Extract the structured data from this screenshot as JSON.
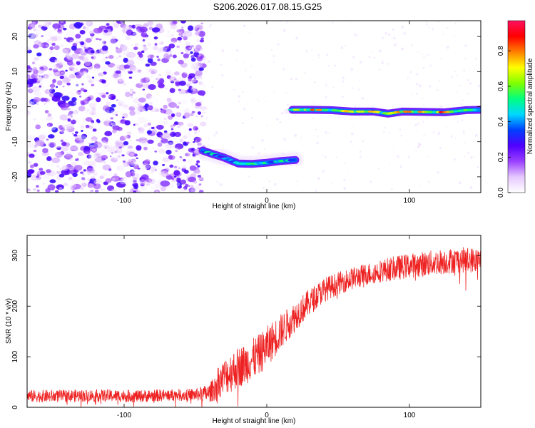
{
  "title": "S206.2026.017.08.15.G25",
  "chart_data": [
    {
      "type": "heatmap",
      "name": "spectrogram",
      "xlabel": "Height of straight line (km)",
      "ylabel": "Frequency (Hz)",
      "xlim": [
        -168,
        150
      ],
      "ylim": [
        -24.5,
        24.5
      ],
      "xticks": [
        -100,
        0,
        100
      ],
      "yticks": [
        -20,
        -10,
        0,
        10,
        20
      ],
      "colorbar": {
        "label": "Normalized spectral amplitude",
        "range": [
          0,
          0.97
        ],
        "ticks": [
          0.0,
          0.2,
          0.4,
          0.6,
          0.8
        ],
        "colormap": [
          "#ffffff",
          "#e6c8ff",
          "#9a40ff",
          "#5000ff",
          "#0040ff",
          "#00d8ff",
          "#00ff80",
          "#80ff00",
          "#ffff00",
          "#ff8000",
          "#ff0000",
          "#ff1060"
        ]
      },
      "noise_region": {
        "x_range": [
          -168,
          -50
        ],
        "description_amplitude": 0.15
      },
      "tracks": [
        {
          "segment": "lower",
          "points": [
            [
              -45,
              -12.5
            ],
            [
              -38,
              -13.5
            ],
            [
              -30,
              -14.5
            ],
            [
              -20,
              -16.2
            ],
            [
              -10,
              -16.3
            ],
            [
              0,
              -16.0
            ],
            [
              10,
              -15.5
            ],
            [
              20,
              -15.2
            ]
          ],
          "amplitude": [
            0.45,
            0.5,
            0.4,
            0.55,
            0.6,
            0.55,
            0.5,
            0.5
          ]
        },
        {
          "segment": "upper",
          "points": [
            [
              18,
              -0.9
            ],
            [
              30,
              -0.9
            ],
            [
              45,
              -1.0
            ],
            [
              60,
              -1.4
            ],
            [
              75,
              -1.4
            ],
            [
              85,
              -2.0
            ],
            [
              95,
              -1.4
            ],
            [
              110,
              -1.5
            ],
            [
              125,
              -1.6
            ],
            [
              140,
              -1.0
            ],
            [
              150,
              -0.9
            ]
          ],
          "amplitude": [
            0.7,
            0.85,
            0.6,
            0.75,
            0.85,
            0.6,
            0.8,
            0.7,
            0.85,
            0.6,
            0.5
          ]
        }
      ]
    },
    {
      "type": "line",
      "name": "snr",
      "xlabel": "Height of straight line (km)",
      "ylabel": "SNR (10 * v/v)",
      "xlim": [
        -168,
        150
      ],
      "ylim": [
        0,
        340
      ],
      "xticks": [
        -100,
        0,
        100
      ],
      "yticks": [
        0,
        100,
        200,
        300
      ],
      "color": "#ee2222",
      "series": [
        {
          "name": "SNR",
          "x": [
            -168,
            -150,
            -130,
            -110,
            -90,
            -70,
            -50,
            -40,
            -35,
            -30,
            -25,
            -20,
            -15,
            -10,
            -5,
            0,
            5,
            10,
            15,
            20,
            25,
            30,
            35,
            40,
            50,
            60,
            70,
            80,
            90,
            100,
            110,
            120,
            130,
            140,
            150
          ],
          "y": [
            22,
            22,
            23,
            23,
            22,
            24,
            25,
            28,
            45,
            60,
            70,
            80,
            85,
            95,
            105,
            120,
            135,
            150,
            165,
            180,
            195,
            208,
            220,
            232,
            245,
            255,
            263,
            270,
            275,
            280,
            283,
            287,
            290,
            292,
            290
          ],
          "jitter": [
            12,
            12,
            12,
            12,
            12,
            12,
            12,
            18,
            30,
            35,
            40,
            40,
            40,
            40,
            40,
            40,
            38,
            35,
            32,
            30,
            28,
            26,
            25,
            24,
            22,
            22,
            22,
            22,
            24,
            24,
            25,
            25,
            25,
            25,
            25
          ]
        }
      ]
    }
  ]
}
